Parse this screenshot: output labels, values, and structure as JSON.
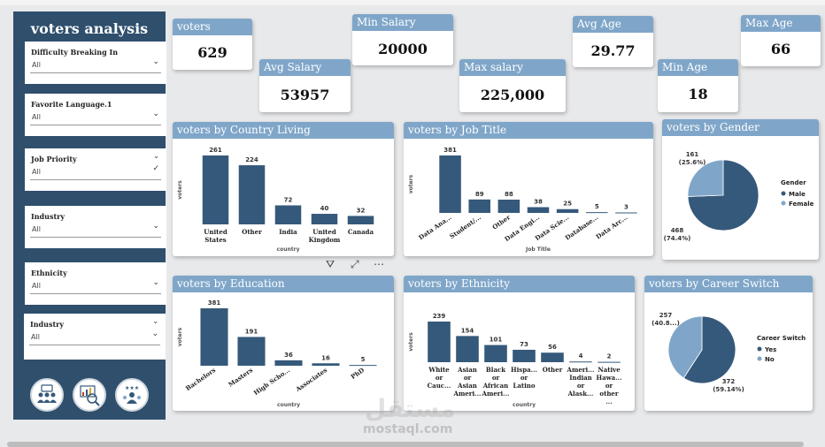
{
  "sidebar": {
    "title": "voters analysis",
    "slicers": [
      {
        "label": "Difficulty Breaking In",
        "value": "All"
      },
      {
        "label": "Favorite Language.1",
        "value": "All"
      },
      {
        "label": "Job Priority",
        "value": "All"
      },
      {
        "label": "Industry",
        "value": "All"
      },
      {
        "label": "Ethnicity",
        "value": "All"
      },
      {
        "label": "Industry",
        "value": "All"
      }
    ],
    "nav_icons": [
      "group-icon",
      "analytics-icon",
      "rating-people-icon"
    ]
  },
  "kpis": {
    "voters": {
      "label": "voters",
      "value": "629"
    },
    "avg_salary": {
      "label": "Avg Salary",
      "value": "53957"
    },
    "min_salary": {
      "label": "Min Salary",
      "value": "20000"
    },
    "max_salary": {
      "label": "Max salary",
      "value": "225,000"
    },
    "avg_age": {
      "label": "Avg Age",
      "value": "29.77"
    },
    "min_age": {
      "label": "Min Age",
      "value": "18"
    },
    "max_age": {
      "label": "Max Age",
      "value": "66"
    }
  },
  "colors": {
    "bar": "#35597a",
    "pie_dark": "#35597a",
    "pie_light": "#7fa6c9",
    "header": "#7fa6c9",
    "sidebar": "#2f4f6d"
  },
  "chart_data": [
    {
      "id": "country",
      "type": "bar",
      "title": "voters by Country Living",
      "xlabel": "country",
      "ylabel": "voters",
      "categories": [
        "United States",
        "Other",
        "India",
        "United Kingdom",
        "Canada"
      ],
      "values": [
        261,
        224,
        72,
        40,
        32
      ]
    },
    {
      "id": "job",
      "type": "bar",
      "title": "voters by Job Title",
      "xlabel": "Job Title",
      "ylabel": "voters",
      "categories": [
        "Data Ana...",
        "Student/...",
        "Other",
        "Data Engi...",
        "Data Scie...",
        "Database...",
        "Data Arc..."
      ],
      "values": [
        381,
        89,
        88,
        38,
        25,
        5,
        3
      ]
    },
    {
      "id": "gender",
      "type": "pie",
      "title": "voters by Gender",
      "legend_title": "Gender",
      "slices": [
        {
          "name": "Male",
          "value": 468,
          "label": "468",
          "pct": "(74.4%)"
        },
        {
          "name": "Female",
          "value": 161,
          "label": "161",
          "pct": "(25.6%)"
        }
      ]
    },
    {
      "id": "education",
      "type": "bar",
      "title": "voters by Education",
      "xlabel": "country",
      "ylabel": "voters",
      "categories": [
        "Bachelors",
        "Masters",
        "High Scho...",
        "Associates",
        "PhD"
      ],
      "values": [
        381,
        191,
        36,
        16,
        5
      ]
    },
    {
      "id": "ethnicity",
      "type": "bar",
      "title": "voters by Ethnicity",
      "xlabel": "country",
      "ylabel": "voters",
      "categories": [
        "White or Cauc...",
        "Asian or Asian Ameri...",
        "Black or African Ameri...",
        "Hispa... or Latino",
        "Other",
        "Ameri... Indian or Alask...",
        "Native Hawa... or other ..."
      ],
      "values": [
        239,
        154,
        101,
        73,
        56,
        4,
        2
      ]
    },
    {
      "id": "career",
      "type": "pie",
      "title": "voters by Career Switch",
      "legend_title": "Career Switch",
      "slices": [
        {
          "name": "Yes",
          "value": 372,
          "label": "372",
          "pct": "(59.14%)"
        },
        {
          "name": "No",
          "value": 257,
          "label": "257",
          "pct": "(40.8...)"
        }
      ]
    }
  ],
  "watermark": {
    "latin": "mostaql.com",
    "arabic": "مستقل"
  }
}
